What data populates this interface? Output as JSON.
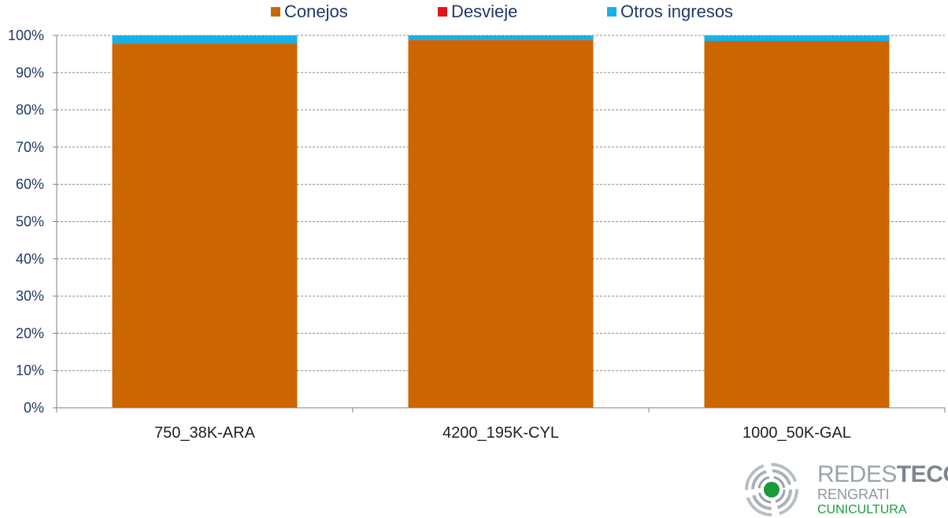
{
  "chart_data": {
    "type": "bar",
    "stacked": true,
    "categories": [
      "750_38K-ARA",
      "4200_195K-CYL",
      "1000_50K-GAL"
    ],
    "series": [
      {
        "name": "Conejos",
        "values": [
          97.7,
          98.7,
          98.3
        ]
      },
      {
        "name": "Desvieje",
        "values": [
          0.1,
          0.1,
          0.1
        ]
      },
      {
        "name": "Otros ingresos",
        "values": [
          2.2,
          1.2,
          1.6
        ]
      }
    ],
    "ylim": [
      0,
      100
    ],
    "yticks": [
      "0%",
      "10%",
      "20%",
      "30%",
      "40%",
      "50%",
      "60%",
      "70%",
      "80%",
      "90%",
      "100%"
    ],
    "grid": true,
    "legend": "top-center"
  },
  "colors": {
    "Conejos": "#CC6600",
    "Desvieje": "#E8101A",
    "Otros ingresos": "#18B0E8",
    "grid": "#8a8a8a",
    "axis": "#7f7f7f"
  },
  "logo": {
    "brand_light": "REDES",
    "brand_bold": "TECO",
    "line2": "RENGRATI",
    "line3": "CUNICULTURA"
  }
}
